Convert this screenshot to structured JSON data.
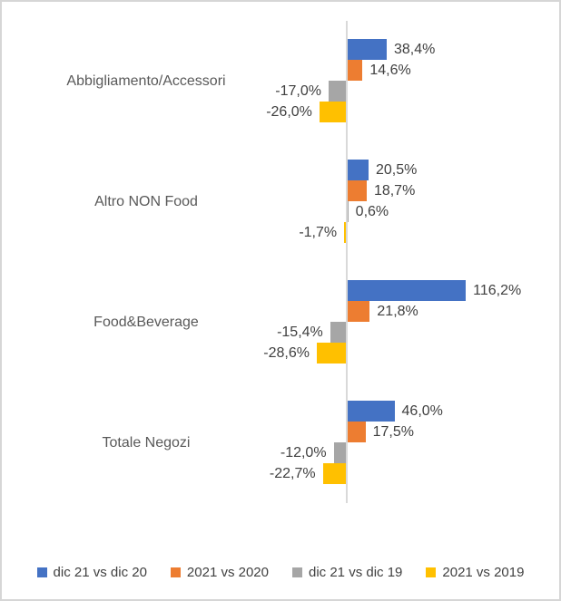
{
  "chart": {
    "background_color": "#FFFFFF",
    "frame_border_color": "#D6D6D6",
    "axis_line_color": "#D9D9D9",
    "value_label_color": "#404040",
    "category_label_color": "#595959",
    "legend_text_color": "#404040"
  },
  "chart_data": {
    "type": "bar",
    "orientation": "horizontal",
    "title": "",
    "xlabel": "",
    "ylabel": "",
    "grid": false,
    "value_axis_ticks_visible": false,
    "legend_position": "bottom",
    "data_labels_position": "outside-end",
    "categories": [
      "Abbigliamento/Accessori",
      "Altro NON Food",
      "Food&Beverage",
      "Totale Negozi"
    ],
    "series": [
      {
        "name": "dic 21 vs dic 20",
        "color": "#4472C4",
        "values": [
          38.4,
          20.5,
          116.2,
          46.0
        ],
        "labels": [
          "38,4%",
          "20,5%",
          "116,2%",
          "46,0%"
        ]
      },
      {
        "name": "2021 vs 2020",
        "color": "#ED7D31",
        "values": [
          14.6,
          18.7,
          21.8,
          17.5
        ],
        "labels": [
          "14,6%",
          "18,7%",
          "21,8%",
          "17,5%"
        ]
      },
      {
        "name": "dic 21 vs dic 19",
        "color": "#A6A6A6",
        "values": [
          -17.0,
          0.6,
          -15.4,
          -12.0
        ],
        "labels": [
          "-17,0%",
          "0,6%",
          "-15,4%",
          "-12,0%"
        ]
      },
      {
        "name": "2021 vs 2019",
        "color": "#FFC000",
        "values": [
          -26.0,
          -1.7,
          -28.6,
          -22.7
        ],
        "labels": [
          "-26,0%",
          "-1,7%",
          "-28,6%",
          "-22,7%"
        ]
      }
    ]
  }
}
